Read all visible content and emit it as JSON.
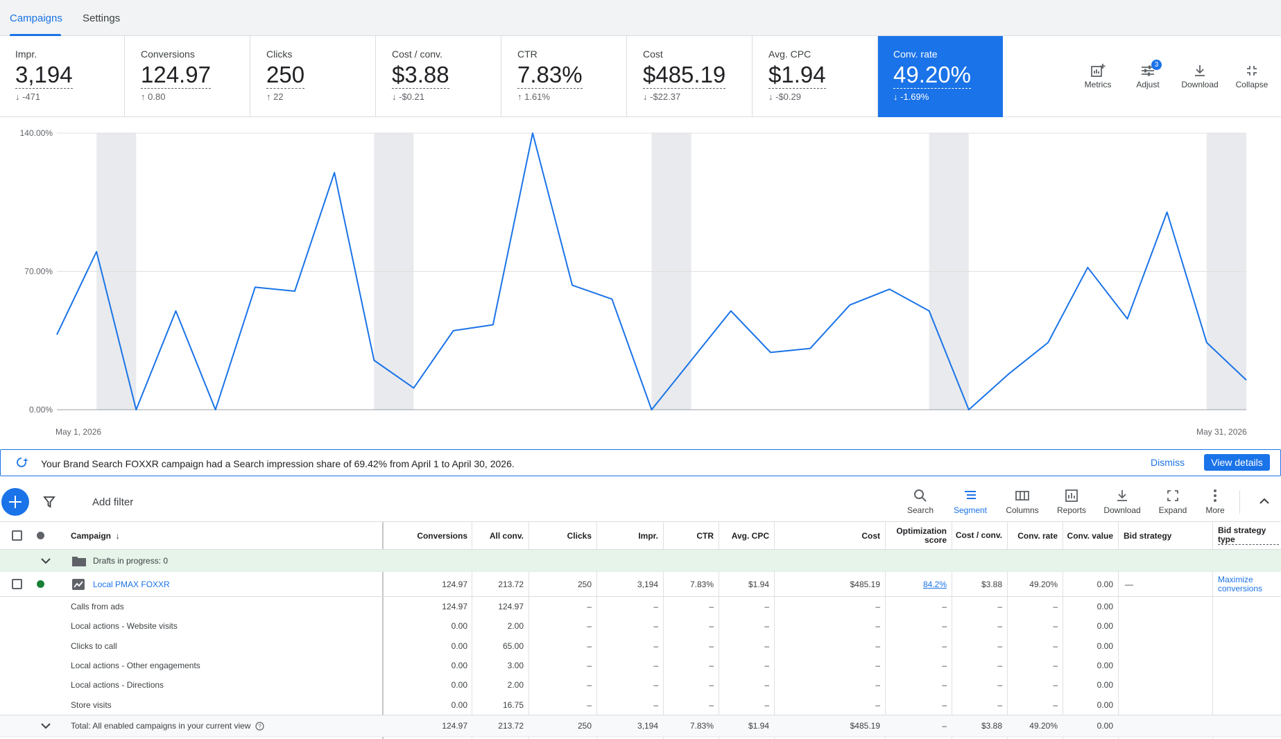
{
  "tabs": [
    {
      "label": "Campaigns",
      "active": true
    },
    {
      "label": "Settings",
      "active": false
    }
  ],
  "metrics": [
    {
      "label": "Impr.",
      "value": "3,194",
      "delta": "-471",
      "direction": "down"
    },
    {
      "label": "Conversions",
      "value": "124.97",
      "delta": "0.80",
      "direction": "up"
    },
    {
      "label": "Clicks",
      "value": "250",
      "delta": "22",
      "direction": "up"
    },
    {
      "label": "Cost / conv.",
      "value": "$3.88",
      "delta": "-$0.21",
      "direction": "down"
    },
    {
      "label": "CTR",
      "value": "7.83%",
      "delta": "1.61%",
      "direction": "up"
    },
    {
      "label": "Cost",
      "value": "$485.19",
      "delta": "-$22.37",
      "direction": "down"
    },
    {
      "label": "Avg. CPC",
      "value": "$1.94",
      "delta": "-$0.29",
      "direction": "down"
    },
    {
      "label": "Conv. rate",
      "value": "49.20%",
      "delta": "-1.69%",
      "direction": "down",
      "selected": true
    }
  ],
  "card_tools": {
    "metrics": "Metrics",
    "adjust": "Adjust",
    "adjust_badge": "3",
    "download": "Download",
    "collapse": "Collapse"
  },
  "chart_data": {
    "type": "line",
    "ylabel": "",
    "xlabel": "",
    "yticks": [
      "140.00%",
      "70.00%",
      "0.00%"
    ],
    "ylim": [
      0,
      140
    ],
    "x_start_label": "May 1, 2026",
    "x_end_label": "May 31, 2026",
    "grid": true,
    "weekend_bands": true,
    "series": [
      {
        "color": "#1a73e8",
        "x": [
          "May 1",
          "May 2",
          "May 3",
          "May 4",
          "May 5",
          "May 6",
          "May 7",
          "May 8",
          "May 9",
          "May 10",
          "May 11",
          "May 12",
          "May 13",
          "May 14",
          "May 15",
          "May 16",
          "May 17",
          "May 18",
          "May 19",
          "May 20",
          "May 21",
          "May 22",
          "May 23",
          "May 24",
          "May 25",
          "May 26",
          "May 27",
          "May 28",
          "May 29",
          "May 30",
          "May 31"
        ],
        "values": [
          38,
          80,
          0,
          50,
          0,
          62,
          60,
          120,
          25,
          11,
          40,
          43,
          140,
          63,
          56,
          0,
          25,
          50,
          29,
          31,
          53,
          61,
          50,
          0,
          18,
          34,
          72,
          46,
          100,
          34,
          15
        ]
      }
    ]
  },
  "notice": {
    "text": "Your Brand Search FOXXR campaign had a Search impression share of 69.42% from April 1 to April 30, 2026.",
    "dismiss": "Dismiss",
    "view_details": "View details"
  },
  "toolbar": {
    "add_filter": "Add filter",
    "tools": [
      {
        "label": "Search",
        "icon": "search-icon"
      },
      {
        "label": "Segment",
        "icon": "segment-icon",
        "active": true
      },
      {
        "label": "Columns",
        "icon": "columns-icon"
      },
      {
        "label": "Reports",
        "icon": "reports-icon"
      },
      {
        "label": "Download",
        "icon": "download-icon"
      },
      {
        "label": "Expand",
        "icon": "expand-icon"
      },
      {
        "label": "More",
        "icon": "more-vert-icon"
      }
    ]
  },
  "table": {
    "headers": {
      "campaign": "Campaign",
      "conversions": "Conversions",
      "all_conv": "All conv.",
      "clicks": "Clicks",
      "impr": "Impr.",
      "ctr": "CTR",
      "avg_cpc": "Avg. CPC",
      "cost": "Cost",
      "opt_score": "Optimization score",
      "cost_conv": "Cost / conv.",
      "conv_rate": "Conv. rate",
      "conv_value": "Conv. value",
      "bid_strategy": "Bid strategy",
      "bid_strategy_type": "Bid strategy type"
    },
    "drafts": "Drafts in progress: 0",
    "campaign_row": {
      "name": "Local PMAX FOXXR",
      "status_color": "#188038",
      "conversions": "124.97",
      "all_conv": "213.72",
      "clicks": "250",
      "impr": "3,194",
      "ctr": "7.83%",
      "avg_cpc": "$1.94",
      "cost": "$485.19",
      "opt_score": "84.2%",
      "cost_conv": "$3.88",
      "conv_rate": "49.20%",
      "conv_value": "0.00",
      "bid_strategy": "—",
      "bid_strategy_type": "Maximize conversions"
    },
    "segment_rows": [
      {
        "name": "Calls from ads",
        "conversions": "124.97",
        "all_conv": "124.97",
        "conv_value": "0.00"
      },
      {
        "name": "Local actions - Website visits",
        "conversions": "0.00",
        "all_conv": "2.00",
        "conv_value": "0.00"
      },
      {
        "name": "Clicks to call",
        "conversions": "0.00",
        "all_conv": "65.00",
        "conv_value": "0.00"
      },
      {
        "name": "Local actions - Other engagements",
        "conversions": "0.00",
        "all_conv": "3.00",
        "conv_value": "0.00"
      },
      {
        "name": "Local actions - Directions",
        "conversions": "0.00",
        "all_conv": "2.00",
        "conv_value": "0.00"
      },
      {
        "name": "Store visits",
        "conversions": "0.00",
        "all_conv": "16.75",
        "conv_value": "0.00"
      }
    ],
    "dash": "–",
    "total_row": {
      "name": "Total: All enabled campaigns in your current view",
      "conversions": "124.97",
      "all_conv": "213.72",
      "clicks": "250",
      "impr": "3,194",
      "ctr": "7.83%",
      "avg_cpc": "$1.94",
      "cost": "$485.19",
      "opt_score": "–",
      "cost_conv": "$3.88",
      "conv_rate": "49.20%",
      "conv_value": "0.00"
    }
  }
}
